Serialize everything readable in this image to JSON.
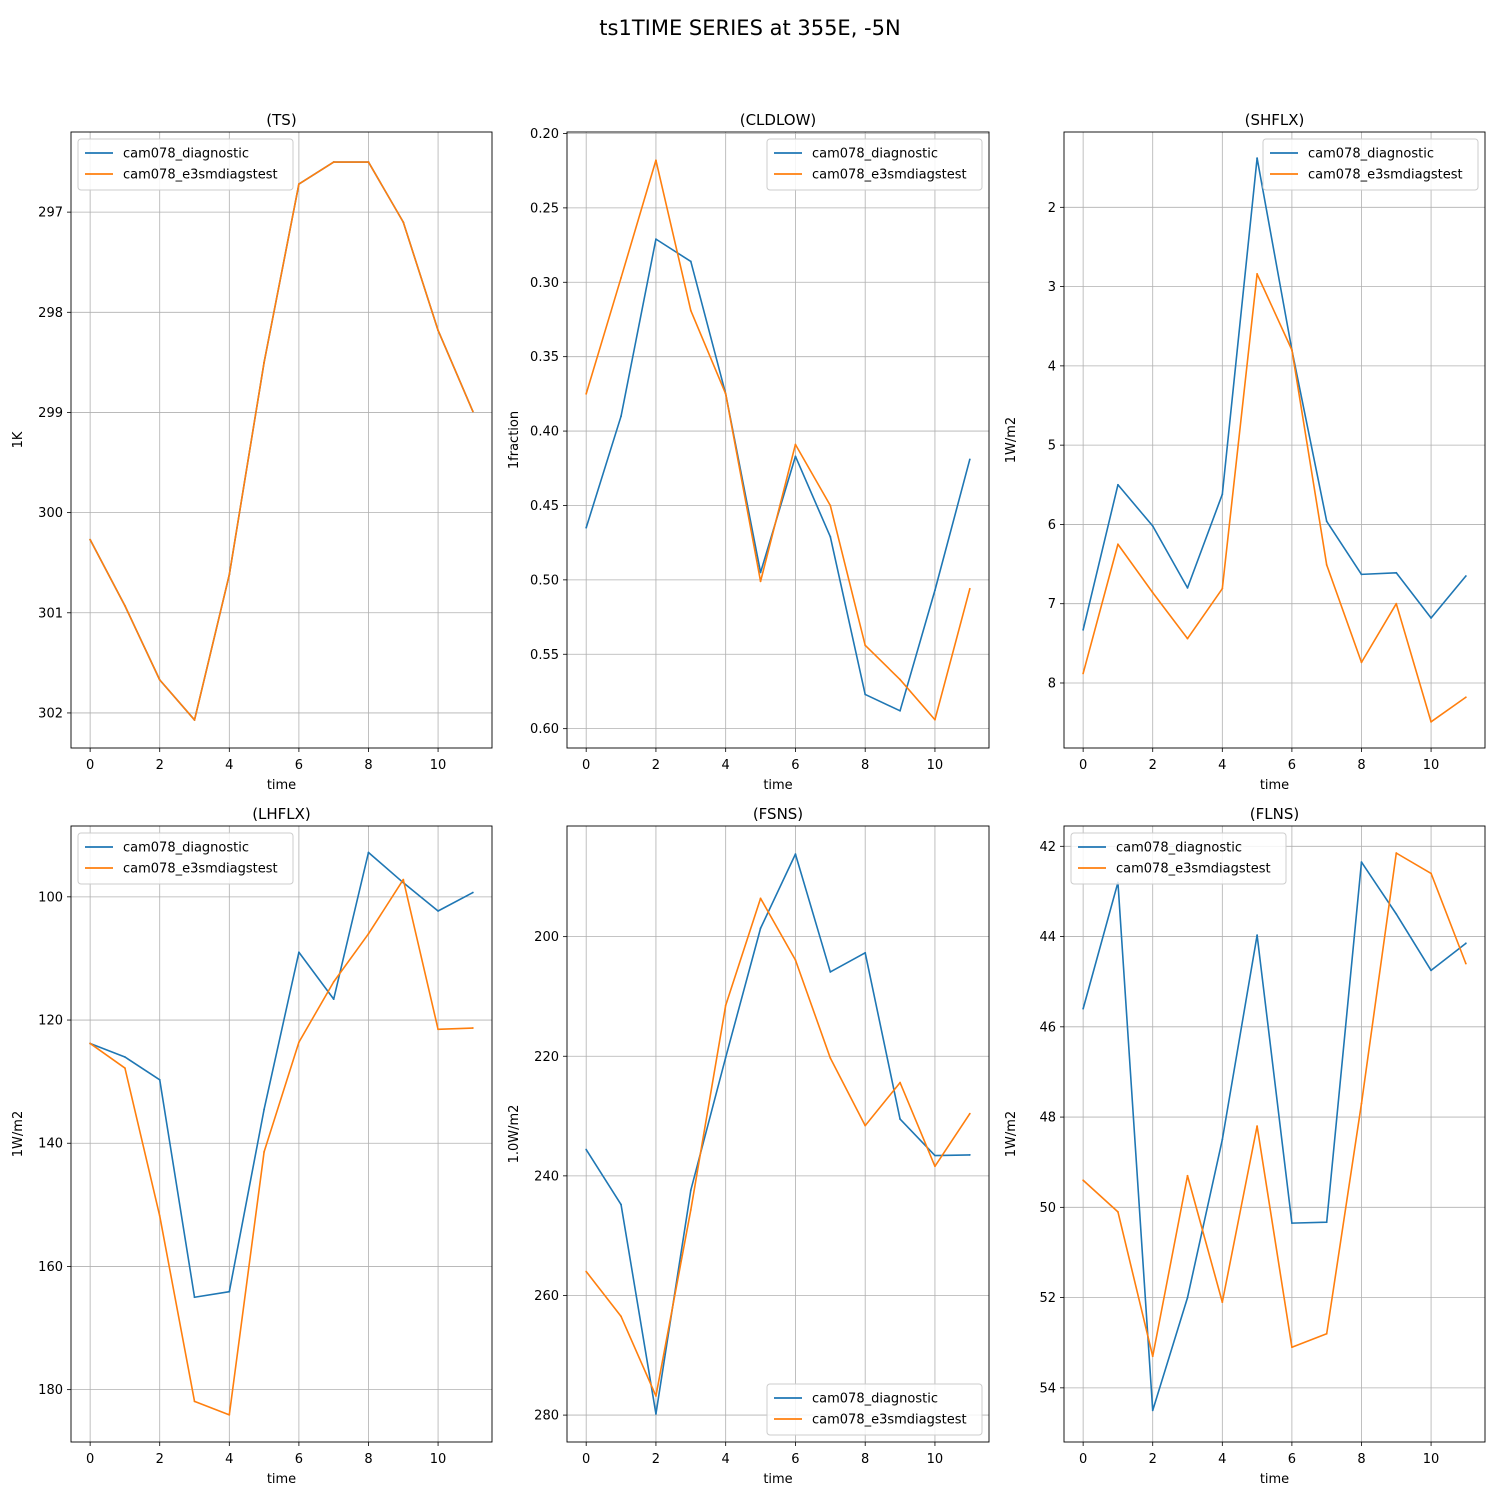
{
  "figure": {
    "suptitle": "ts1TIME SERIES at 355E, -5N"
  },
  "colors": {
    "series1": "#1f77b4",
    "series2": "#ff7f0e",
    "grid": "#b0b0b0"
  },
  "chart_data": [
    {
      "type": "line",
      "title": "(TS)",
      "xlabel": "time",
      "ylabel": "1K",
      "y_inverted": true,
      "xlim": [
        -0.55,
        11.55
      ],
      "ylim": [
        296.2,
        302.35
      ],
      "xticks": [
        0,
        2,
        4,
        6,
        8,
        10
      ],
      "yticks": [
        297,
        298,
        299,
        300,
        301,
        302
      ],
      "legend_loc": "upper left",
      "grid": true,
      "x": [
        0,
        1,
        2,
        3,
        4,
        5,
        6,
        7,
        8,
        9,
        10,
        11
      ],
      "series": [
        {
          "name": "cam078_diagnostic",
          "values": [
            300.27,
            300.93,
            301.67,
            302.07,
            300.62,
            298.5,
            296.72,
            296.5,
            296.5,
            297.1,
            298.18,
            298.99
          ]
        },
        {
          "name": "cam078_e3smdiagstest",
          "values": [
            300.27,
            300.93,
            301.67,
            302.07,
            300.62,
            298.5,
            296.72,
            296.5,
            296.5,
            297.1,
            298.18,
            298.99
          ]
        }
      ]
    },
    {
      "type": "line",
      "title": "(CLDLOW)",
      "xlabel": "time",
      "ylabel": "1fraction",
      "y_inverted": true,
      "xlim": [
        -0.55,
        11.55
      ],
      "ylim": [
        0.199,
        0.613
      ],
      "xticks": [
        0,
        2,
        4,
        6,
        8,
        10
      ],
      "yticks": [
        0.2,
        0.25,
        0.3,
        0.35,
        0.4,
        0.45,
        0.5,
        0.55,
        0.6
      ],
      "ytick_labels": [
        "0.20",
        "0.25",
        "0.30",
        "0.35",
        "0.40",
        "0.45",
        "0.50",
        "0.55",
        "0.60"
      ],
      "legend_loc": "upper right",
      "grid": true,
      "x": [
        0,
        1,
        2,
        3,
        4,
        5,
        6,
        7,
        8,
        9,
        10,
        11
      ],
      "series": [
        {
          "name": "cam078_diagnostic",
          "values": [
            0.465,
            0.39,
            0.271,
            0.286,
            0.375,
            0.495,
            0.417,
            0.471,
            0.577,
            0.588,
            0.507,
            0.419
          ]
        },
        {
          "name": "cam078_e3smdiagstest",
          "values": [
            0.375,
            0.297,
            0.218,
            0.319,
            0.375,
            0.501,
            0.409,
            0.45,
            0.544,
            0.567,
            0.594,
            0.506
          ]
        }
      ]
    },
    {
      "type": "line",
      "title": "(SHFLX)",
      "xlabel": "time",
      "ylabel": "1W/m2",
      "y_inverted": true,
      "xlim": [
        -0.55,
        11.55
      ],
      "ylim": [
        1.05,
        8.82
      ],
      "xticks": [
        0,
        2,
        4,
        6,
        8,
        10
      ],
      "yticks": [
        2,
        3,
        4,
        5,
        6,
        7,
        8
      ],
      "legend_loc": "upper right",
      "grid": true,
      "x": [
        0,
        1,
        2,
        3,
        4,
        5,
        6,
        7,
        8,
        9,
        10,
        11
      ],
      "series": [
        {
          "name": "cam078_diagnostic",
          "values": [
            7.33,
            5.5,
            6.02,
            6.8,
            5.62,
            1.38,
            3.8,
            5.96,
            6.63,
            6.61,
            7.18,
            6.65
          ]
        },
        {
          "name": "cam078_e3smdiagstest",
          "values": [
            7.88,
            6.25,
            6.86,
            7.44,
            6.81,
            2.84,
            3.8,
            6.51,
            7.74,
            7.0,
            8.49,
            8.18
          ]
        }
      ]
    },
    {
      "type": "line",
      "title": "(LHFLX)",
      "xlabel": "time",
      "ylabel": "1W/m2",
      "y_inverted": true,
      "xlim": [
        -0.55,
        11.55
      ],
      "ylim": [
        88.5,
        188.5
      ],
      "xticks": [
        0,
        2,
        4,
        6,
        8,
        10
      ],
      "yticks": [
        100,
        120,
        140,
        160,
        180
      ],
      "legend_loc": "upper left",
      "grid": true,
      "x": [
        0,
        1,
        2,
        3,
        4,
        5,
        6,
        7,
        8,
        9,
        10,
        11
      ],
      "series": [
        {
          "name": "cam078_diagnostic",
          "values": [
            123.8,
            126.0,
            129.7,
            165.0,
            164.1,
            134.5,
            109.0,
            116.6,
            92.8,
            97.7,
            102.3,
            99.3
          ]
        },
        {
          "name": "cam078_e3smdiagstest",
          "values": [
            123.8,
            127.8,
            151.8,
            181.9,
            184.1,
            141.4,
            123.6,
            113.8,
            106.0,
            97.2,
            121.5,
            121.3
          ]
        }
      ]
    },
    {
      "type": "line",
      "title": "(FSNS)",
      "xlabel": "time",
      "ylabel": "1.0W/m2",
      "y_inverted": true,
      "xlim": [
        -0.55,
        11.55
      ],
      "ylim": [
        181.5,
        284.5
      ],
      "xticks": [
        0,
        2,
        4,
        6,
        8,
        10
      ],
      "yticks": [
        200,
        220,
        240,
        260,
        280
      ],
      "legend_loc": "lower right",
      "grid": true,
      "x": [
        0,
        1,
        2,
        3,
        4,
        5,
        6,
        7,
        8,
        9,
        10,
        11
      ],
      "series": [
        {
          "name": "cam078_diagnostic",
          "values": [
            235.6,
            244.8,
            279.8,
            242.4,
            220.2,
            198.6,
            186.2,
            205.9,
            202.7,
            230.5,
            236.6,
            236.5
          ]
        },
        {
          "name": "cam078_e3smdiagstest",
          "values": [
            256.0,
            263.5,
            276.8,
            245.7,
            211.5,
            193.6,
            203.9,
            220.3,
            231.6,
            224.4,
            238.4,
            229.6
          ]
        }
      ]
    },
    {
      "type": "line",
      "title": "(FLNS)",
      "xlabel": "time",
      "ylabel": "1W/m2",
      "y_inverted": true,
      "xlim": [
        -0.55,
        11.55
      ],
      "ylim": [
        41.55,
        55.2
      ],
      "xticks": [
        0,
        2,
        4,
        6,
        8,
        10
      ],
      "yticks": [
        42,
        44,
        46,
        48,
        50,
        52,
        54
      ],
      "legend_loc": "upper left",
      "grid": true,
      "x": [
        0,
        1,
        2,
        3,
        4,
        5,
        6,
        7,
        8,
        9,
        10,
        11
      ],
      "series": [
        {
          "name": "cam078_diagnostic",
          "values": [
            45.6,
            42.8,
            54.5,
            52.0,
            48.5,
            43.97,
            50.35,
            50.33,
            42.35,
            43.5,
            44.75,
            44.15
          ]
        },
        {
          "name": "cam078_e3smdiagstest",
          "values": [
            49.4,
            50.1,
            53.3,
            49.3,
            52.1,
            48.2,
            53.1,
            52.8,
            47.7,
            42.15,
            42.6,
            44.6
          ]
        }
      ]
    }
  ]
}
